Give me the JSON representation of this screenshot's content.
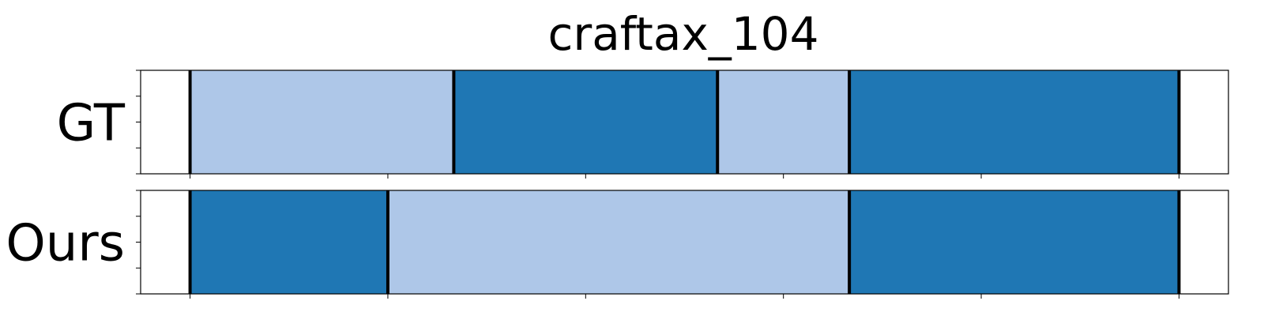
{
  "chart_data": {
    "type": "segmentation-timeline",
    "title": "craftax_104",
    "x_range": [
      -15,
      315
    ],
    "x_ticks": [
      0,
      60,
      120,
      180,
      240,
      300
    ],
    "rows": [
      {
        "label": "GT",
        "segments": [
          {
            "start": 0,
            "end": 80,
            "class": "light"
          },
          {
            "start": 80,
            "end": 160,
            "class": "dark"
          },
          {
            "start": 160,
            "end": 200,
            "class": "light"
          },
          {
            "start": 200,
            "end": 300,
            "class": "dark"
          }
        ],
        "boundaries": [
          0,
          80,
          160,
          200,
          300
        ]
      },
      {
        "label": "Ours",
        "segments": [
          {
            "start": 0,
            "end": 60,
            "class": "dark"
          },
          {
            "start": 60,
            "end": 200,
            "class": "light"
          },
          {
            "start": 200,
            "end": 300,
            "class": "dark"
          }
        ],
        "boundaries": [
          0,
          60,
          200,
          300
        ]
      }
    ],
    "colors": {
      "light": "#aec7e8",
      "dark": "#1f77b4",
      "boundary": "#000000"
    }
  }
}
